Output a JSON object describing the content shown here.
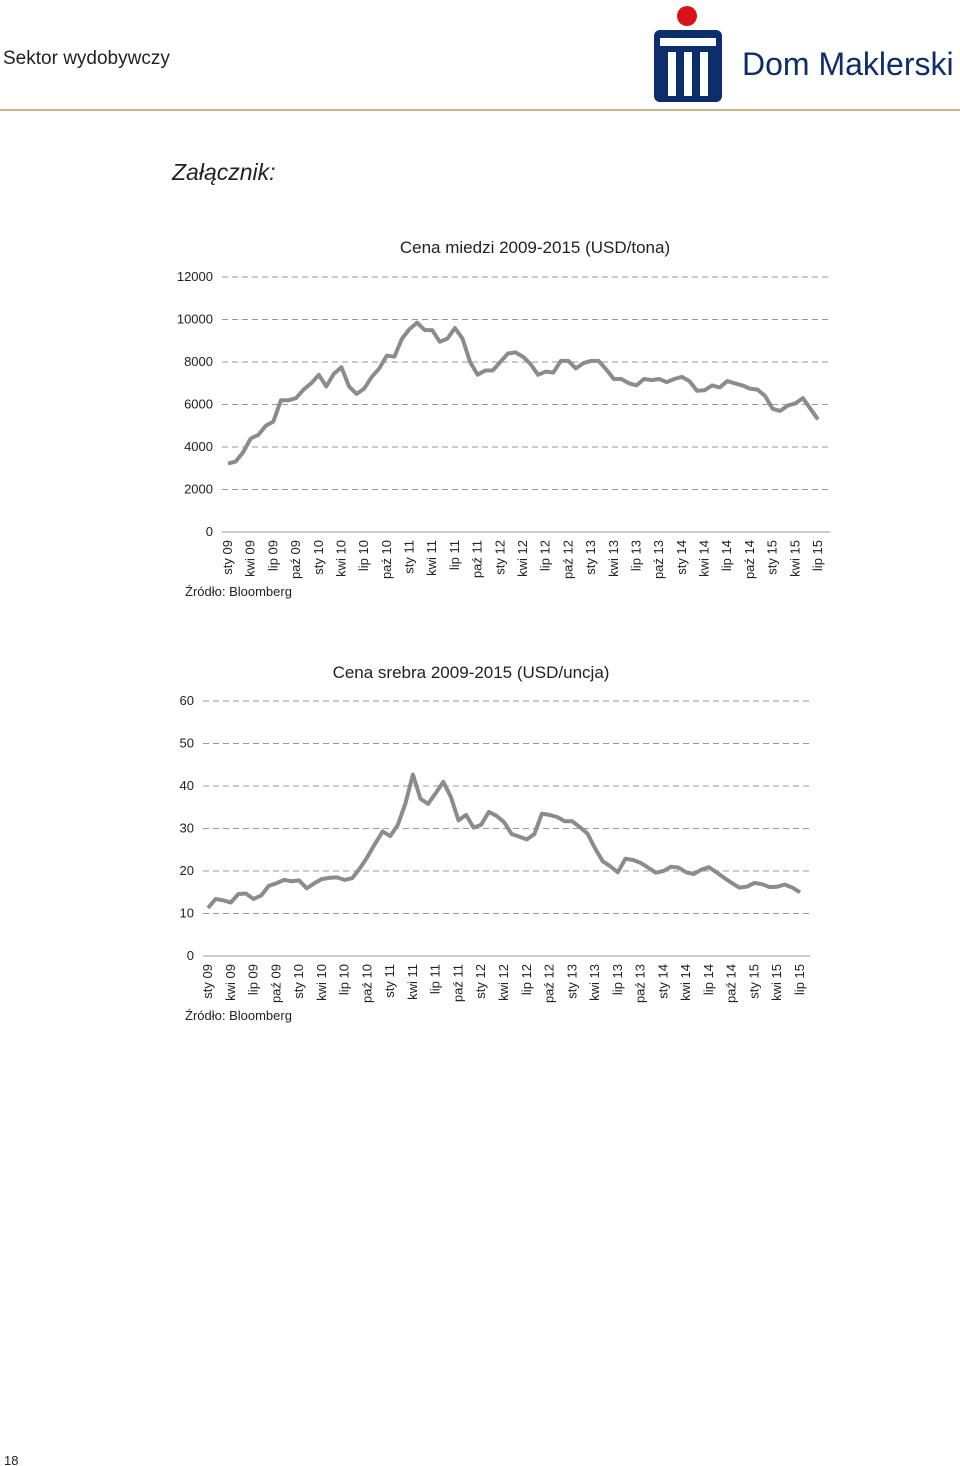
{
  "header": {
    "section": "Sektor wydobywczy",
    "brand": "Dom Maklerski"
  },
  "heading": "Załącznik:",
  "chart_data": [
    {
      "type": "line",
      "title": "Cena miedzi 2009-2015 (USD/tona)",
      "source": "Źródło: Bloomberg",
      "categories": [
        "sty 09",
        null,
        null,
        "kwi 09",
        null,
        null,
        "lip 09",
        null,
        null,
        "paź 09",
        null,
        null,
        "sty 10",
        null,
        null,
        "kwi 10",
        null,
        null,
        "lip 10",
        null,
        null,
        "paź 10",
        null,
        null,
        "sty 11",
        null,
        null,
        "kwi 11",
        null,
        null,
        "lip 11",
        null,
        null,
        "paź 11",
        null,
        null,
        "sty 12",
        null,
        null,
        "kwi 12",
        null,
        null,
        "lip 12",
        null,
        null,
        "paź 12",
        null,
        null,
        "sty 13",
        null,
        null,
        "kwi 13",
        null,
        null,
        "lip 13",
        null,
        null,
        "paź 13",
        null,
        null,
        "sty 14",
        null,
        null,
        "kwi 14",
        null,
        null,
        "lip 14",
        null,
        null,
        "paź 14",
        null,
        null,
        "sty 15",
        null,
        null,
        "kwi 15",
        null,
        null,
        "lip 15"
      ],
      "values": [
        3220,
        3315,
        3750,
        4400,
        4570,
        5000,
        5200,
        6200,
        6200,
        6300,
        6700,
        7000,
        7400,
        6850,
        7450,
        7750,
        6850,
        6500,
        6750,
        7300,
        7700,
        8300,
        8250,
        9100,
        9550,
        9850,
        9500,
        9500,
        8950,
        9100,
        9600,
        9100,
        8000,
        7400,
        7600,
        7600,
        8000,
        8400,
        8450,
        8250,
        7900,
        7400,
        7550,
        7500,
        8050,
        8050,
        7700,
        7950,
        8050,
        8050,
        7650,
        7200,
        7200,
        7000,
        6900,
        7200,
        7150,
        7200,
        7050,
        7200,
        7300,
        7100,
        6650,
        6670,
        6900,
        6800,
        7100,
        7000,
        6900,
        6750,
        6700,
        6400,
        5800,
        5700,
        5950,
        6050,
        6300,
        5800,
        5300
      ],
      "color": "#8c8c8c",
      "ylim": [
        0,
        12000
      ],
      "yticks": [
        0,
        2000,
        4000,
        6000,
        8000,
        10000,
        12000
      ],
      "grid": true
    },
    {
      "type": "line",
      "title": "Cena srebra 2009-2015 (USD/uncja)",
      "source": "Źródło: Bloomberg",
      "categories": [
        "sty 09",
        null,
        null,
        "kwi 09",
        null,
        null,
        "lip 09",
        null,
        null,
        "paź 09",
        null,
        null,
        "sty 10",
        null,
        null,
        "kwi 10",
        null,
        null,
        "lip 10",
        null,
        null,
        "paź 10",
        null,
        null,
        "sty 11",
        null,
        null,
        "kwi 11",
        null,
        null,
        "lip 11",
        null,
        null,
        "paź 11",
        null,
        null,
        "sty 12",
        null,
        null,
        "kwi 12",
        null,
        null,
        "lip 12",
        null,
        null,
        "paź 12",
        null,
        null,
        "sty 13",
        null,
        null,
        "kwi 13",
        null,
        null,
        "lip 13",
        null,
        null,
        "paź 13",
        null,
        null,
        "sty 14",
        null,
        null,
        "kwi 14",
        null,
        null,
        "lip 14",
        null,
        null,
        "paź 14",
        null,
        null,
        "sty 15",
        null,
        null,
        "kwi 15",
        null,
        null,
        "lip 15"
      ],
      "values": [
        11.3,
        13.4,
        13.1,
        12.6,
        14.6,
        14.7,
        13.4,
        14.2,
        16.5,
        17.1,
        17.9,
        17.6,
        17.8,
        15.9,
        17.1,
        18.1,
        18.4,
        18.5,
        17.9,
        18.3,
        20.6,
        23.3,
        26.4,
        29.3,
        28.2,
        30.8,
        35.8,
        42.7,
        37.0,
        35.8,
        38.3,
        41.0,
        37.4,
        31.9,
        33.2,
        30.2,
        30.9,
        33.9,
        33.0,
        31.5,
        28.7,
        28.1,
        27.4,
        28.7,
        33.5,
        33.2,
        32.7,
        31.7,
        31.7,
        30.3,
        28.8,
        25.3,
        22.3,
        21.1,
        19.7,
        22.9,
        22.6,
        21.9,
        20.8,
        19.6,
        20.0,
        21.0,
        20.8,
        19.7,
        19.3,
        20.3,
        20.9,
        19.7,
        18.4,
        17.2,
        16.1,
        16.3,
        17.2,
        16.9,
        16.2,
        16.3,
        16.8,
        16.1,
        15.0
      ],
      "color": "#8c8c8c",
      "ylim": [
        0,
        60
      ],
      "yticks": [
        0,
        10,
        20,
        30,
        40,
        50,
        60
      ],
      "grid": true
    }
  ],
  "page_number": "18"
}
